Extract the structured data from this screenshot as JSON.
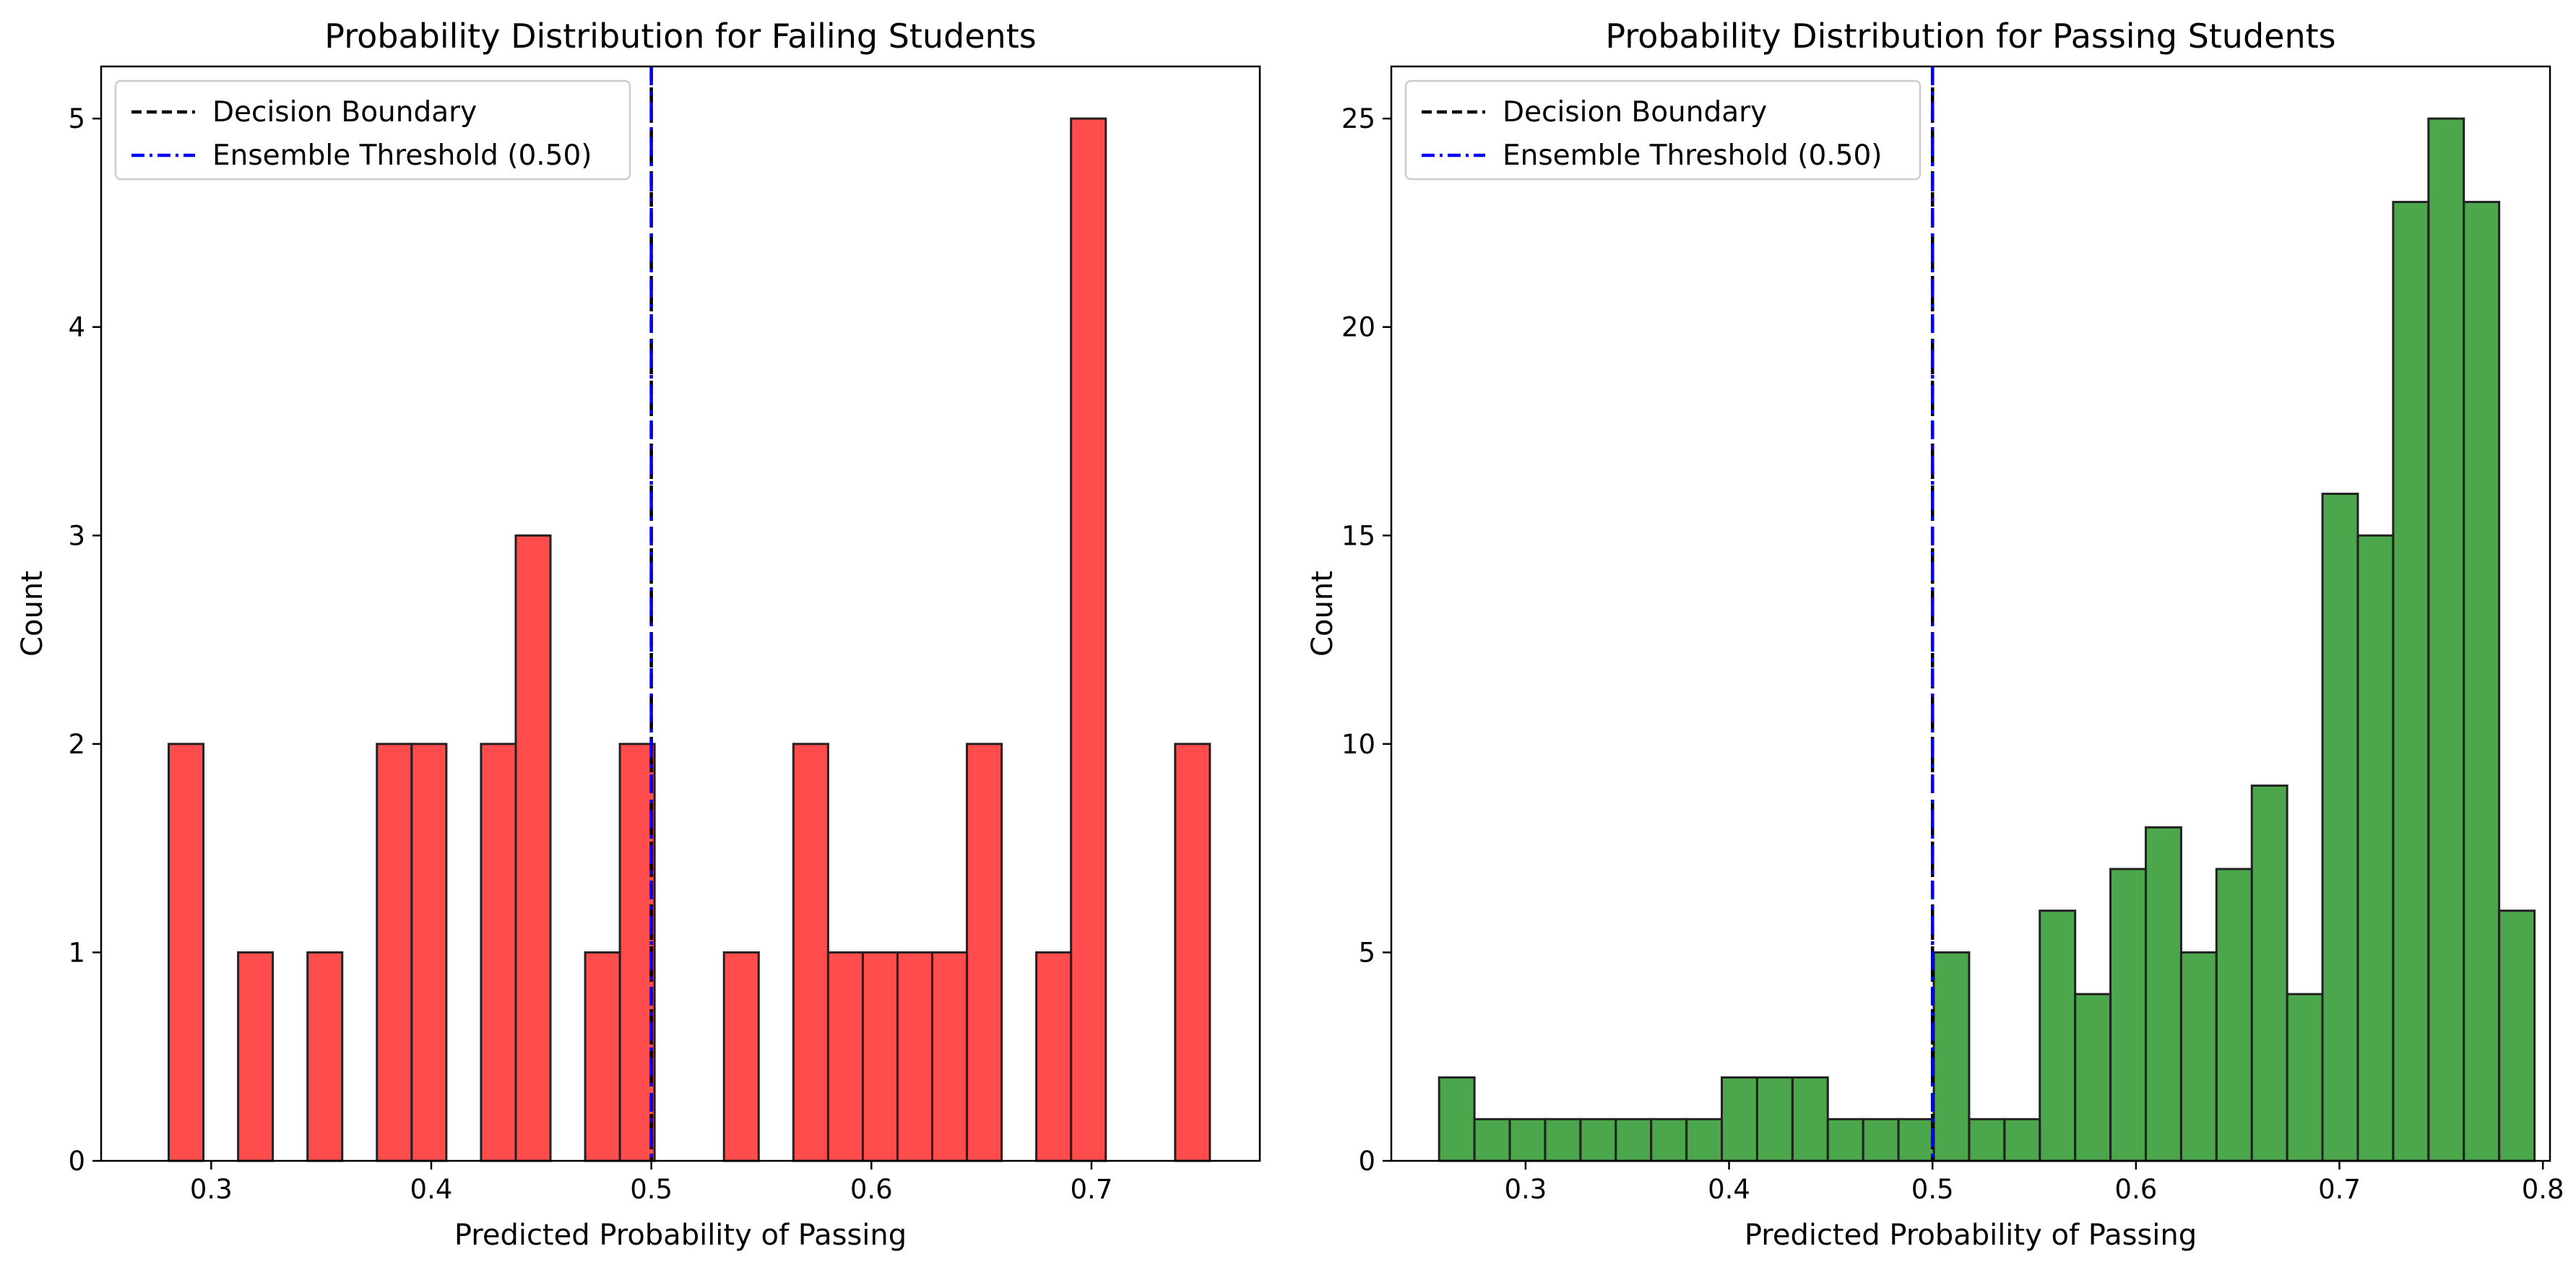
{
  "chart_data": [
    {
      "type": "histogram",
      "title": "Probability Distribution for Failing Students",
      "xlabel": "Predicted Probability of Passing",
      "ylabel": "Count",
      "xlim": [
        0.25,
        0.7765
      ],
      "ylim": [
        0,
        5.25
      ],
      "xticks": [
        0.3,
        0.4,
        0.5,
        0.6,
        0.7
      ],
      "xtick_labels": [
        "0.3",
        "0.4",
        "0.5",
        "0.6",
        "0.7"
      ],
      "yticks": [
        0,
        1,
        2,
        3,
        4,
        5
      ],
      "ytick_labels": [
        "0",
        "1",
        "2",
        "3",
        "4",
        "5"
      ],
      "bar_color": "#ff0000",
      "bar_opacity": 0.7,
      "bins_start": 0.2807,
      "bin_width": 0.01577,
      "counts": [
        2,
        0,
        1,
        0,
        1,
        0,
        2,
        2,
        0,
        2,
        3,
        0,
        1,
        2,
        0,
        0,
        1,
        0,
        2,
        1,
        1,
        1,
        1,
        2,
        0,
        1,
        5,
        0,
        0,
        2
      ],
      "vlines": [
        {
          "name": "Decision Boundary",
          "x": 0.5,
          "color": "#000000",
          "style": "dashed"
        },
        {
          "name": "Ensemble Threshold (0.50)",
          "x": 0.5,
          "color": "#0000ff",
          "style": "dashdot"
        }
      ],
      "legend_position": "upper left",
      "grid": false
    },
    {
      "type": "histogram",
      "title": "Probability Distribution for Passing Students",
      "xlabel": "Predicted Probability of Passing",
      "ylabel": "Count",
      "xlim": [
        0.234,
        0.8035
      ],
      "ylim": [
        0,
        26.25
      ],
      "xticks": [
        0.3,
        0.4,
        0.5,
        0.6,
        0.7,
        0.8
      ],
      "xtick_labels": [
        "0.3",
        "0.4",
        "0.5",
        "0.6",
        "0.7",
        "0.8"
      ],
      "yticks": [
        0,
        5,
        10,
        15,
        20,
        25
      ],
      "ytick_labels": [
        "0",
        "5",
        "10",
        "15",
        "20",
        "25"
      ],
      "bar_color": "#008000",
      "bar_opacity": 0.7,
      "bins_start": 0.2575,
      "bin_width": 0.017367,
      "counts": [
        2,
        1,
        1,
        1,
        1,
        1,
        1,
        1,
        2,
        2,
        2,
        1,
        1,
        1,
        5,
        1,
        1,
        6,
        4,
        7,
        8,
        5,
        7,
        9,
        4,
        16,
        15,
        23,
        25,
        23,
        6
      ],
      "vlines": [
        {
          "name": "Decision Boundary",
          "x": 0.5,
          "color": "#000000",
          "style": "dashed"
        },
        {
          "name": "Ensemble Threshold (0.50)",
          "x": 0.5,
          "color": "#0000ff",
          "style": "dashdot"
        }
      ],
      "legend_position": "upper left",
      "grid": false
    }
  ]
}
